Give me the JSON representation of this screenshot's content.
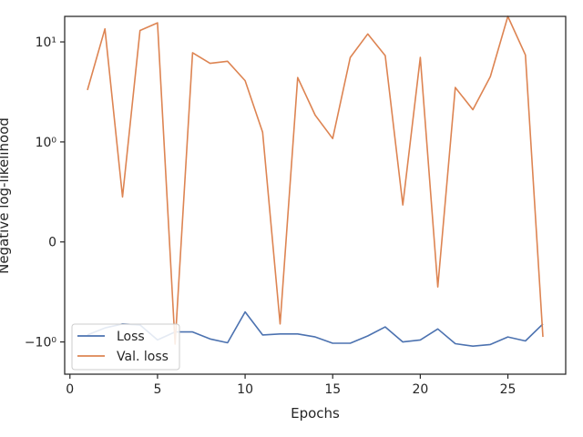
{
  "chart_data": {
    "type": "line",
    "title": "",
    "xlabel": "Epochs",
    "ylabel": "Negative log-likelihood",
    "yscale": "symlog",
    "xlim": [
      -0.3,
      28.3
    ],
    "ylim": [
      -2.1,
      18
    ],
    "x_ticks": [
      0,
      5,
      10,
      15,
      20,
      25
    ],
    "y_ticks": [
      {
        "value": 10,
        "label": "10¹"
      },
      {
        "value": 1,
        "label": "10⁰"
      },
      {
        "value": 0,
        "label": "0"
      },
      {
        "value": -1,
        "label": "−10⁰"
      }
    ],
    "grid": false,
    "legend_position": "lower-left",
    "x": [
      1,
      2,
      3,
      4,
      5,
      6,
      7,
      8,
      9,
      10,
      11,
      12,
      13,
      14,
      15,
      16,
      17,
      18,
      19,
      20,
      21,
      22,
      23,
      24,
      25,
      26,
      27
    ],
    "series": [
      {
        "name": "Loss",
        "color": "#4c72b0",
        "values": [
          -0.93,
          -0.86,
          -0.82,
          -0.83,
          -0.98,
          -0.9,
          -0.9,
          -0.97,
          -1.02,
          -0.7,
          -0.93,
          -0.92,
          -0.92,
          -0.95,
          -1.03,
          -1.03,
          -0.94,
          -0.85,
          -1.0,
          -0.98,
          -0.87,
          -1.04,
          -1.1,
          -1.06,
          -0.95,
          -0.99,
          -0.82
        ]
      },
      {
        "name": "Val. loss",
        "color": "#dd8452",
        "values": [
          3.3,
          13.5,
          0.45,
          13.0,
          15.5,
          -1.05,
          7.8,
          6.1,
          6.4,
          4.1,
          1.25,
          -0.82,
          4.4,
          1.85,
          1.08,
          7.0,
          12.0,
          7.3,
          0.37,
          7.0,
          -0.45,
          3.5,
          2.1,
          4.5,
          18.0,
          7.4,
          -0.95
        ]
      }
    ]
  }
}
